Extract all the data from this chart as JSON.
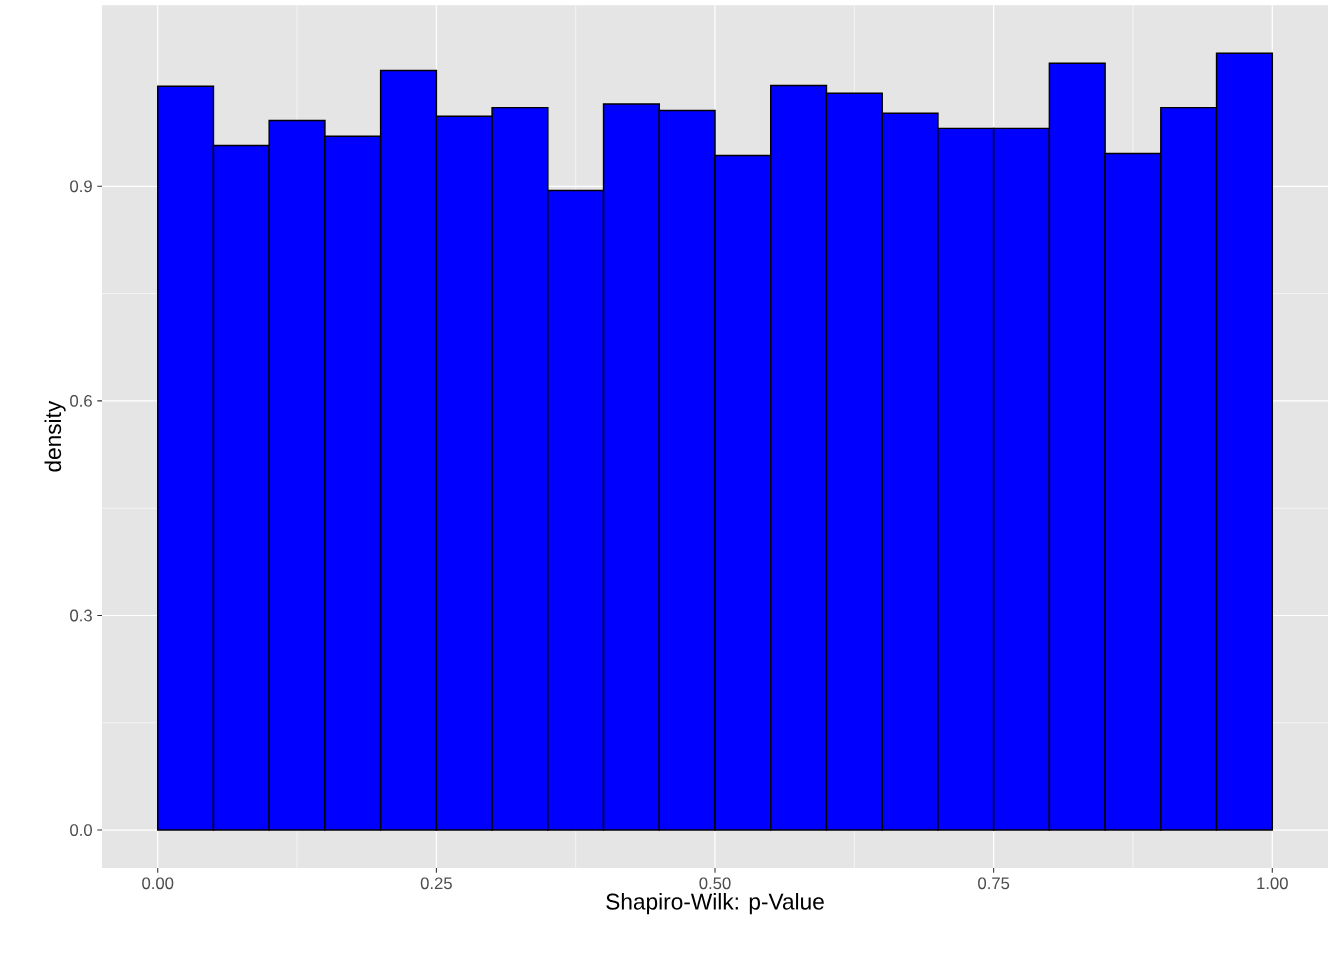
{
  "chart_data": {
    "type": "histogram",
    "xlabel": "Shapiro-Wilk: p-Value",
    "ylabel": "density",
    "bins": [
      0.0,
      0.05,
      0.1,
      0.15,
      0.2,
      0.25,
      0.3,
      0.35,
      0.4,
      0.45,
      0.5,
      0.55,
      0.6,
      0.65,
      0.7,
      0.75,
      0.8,
      0.85,
      0.9,
      0.95,
      1.0
    ],
    "values": [
      1.04,
      0.957,
      0.992,
      0.97,
      1.062,
      0.998,
      1.01,
      0.894,
      1.015,
      1.006,
      0.943,
      1.041,
      1.03,
      1.002,
      0.981,
      0.981,
      1.072,
      0.946,
      1.01,
      1.086
    ],
    "color": "#0000ff",
    "xlim": [
      -0.05,
      1.05
    ],
    "ylim": [
      -0.053,
      1.153
    ],
    "xticks": [
      {
        "value": 0,
        "label": "0.00"
      },
      {
        "value": 0.25,
        "label": "0.25"
      },
      {
        "value": 0.5,
        "label": "0.50"
      },
      {
        "value": 0.75,
        "label": "0.75"
      },
      {
        "value": 1,
        "label": "1.00"
      }
    ],
    "yticks": [
      {
        "value": 0,
        "label": "0.0"
      },
      {
        "value": 0.3,
        "label": "0.3"
      },
      {
        "value": 0.6,
        "label": "0.6"
      },
      {
        "value": 0.9,
        "label": "0.9"
      }
    ],
    "grid": true
  }
}
